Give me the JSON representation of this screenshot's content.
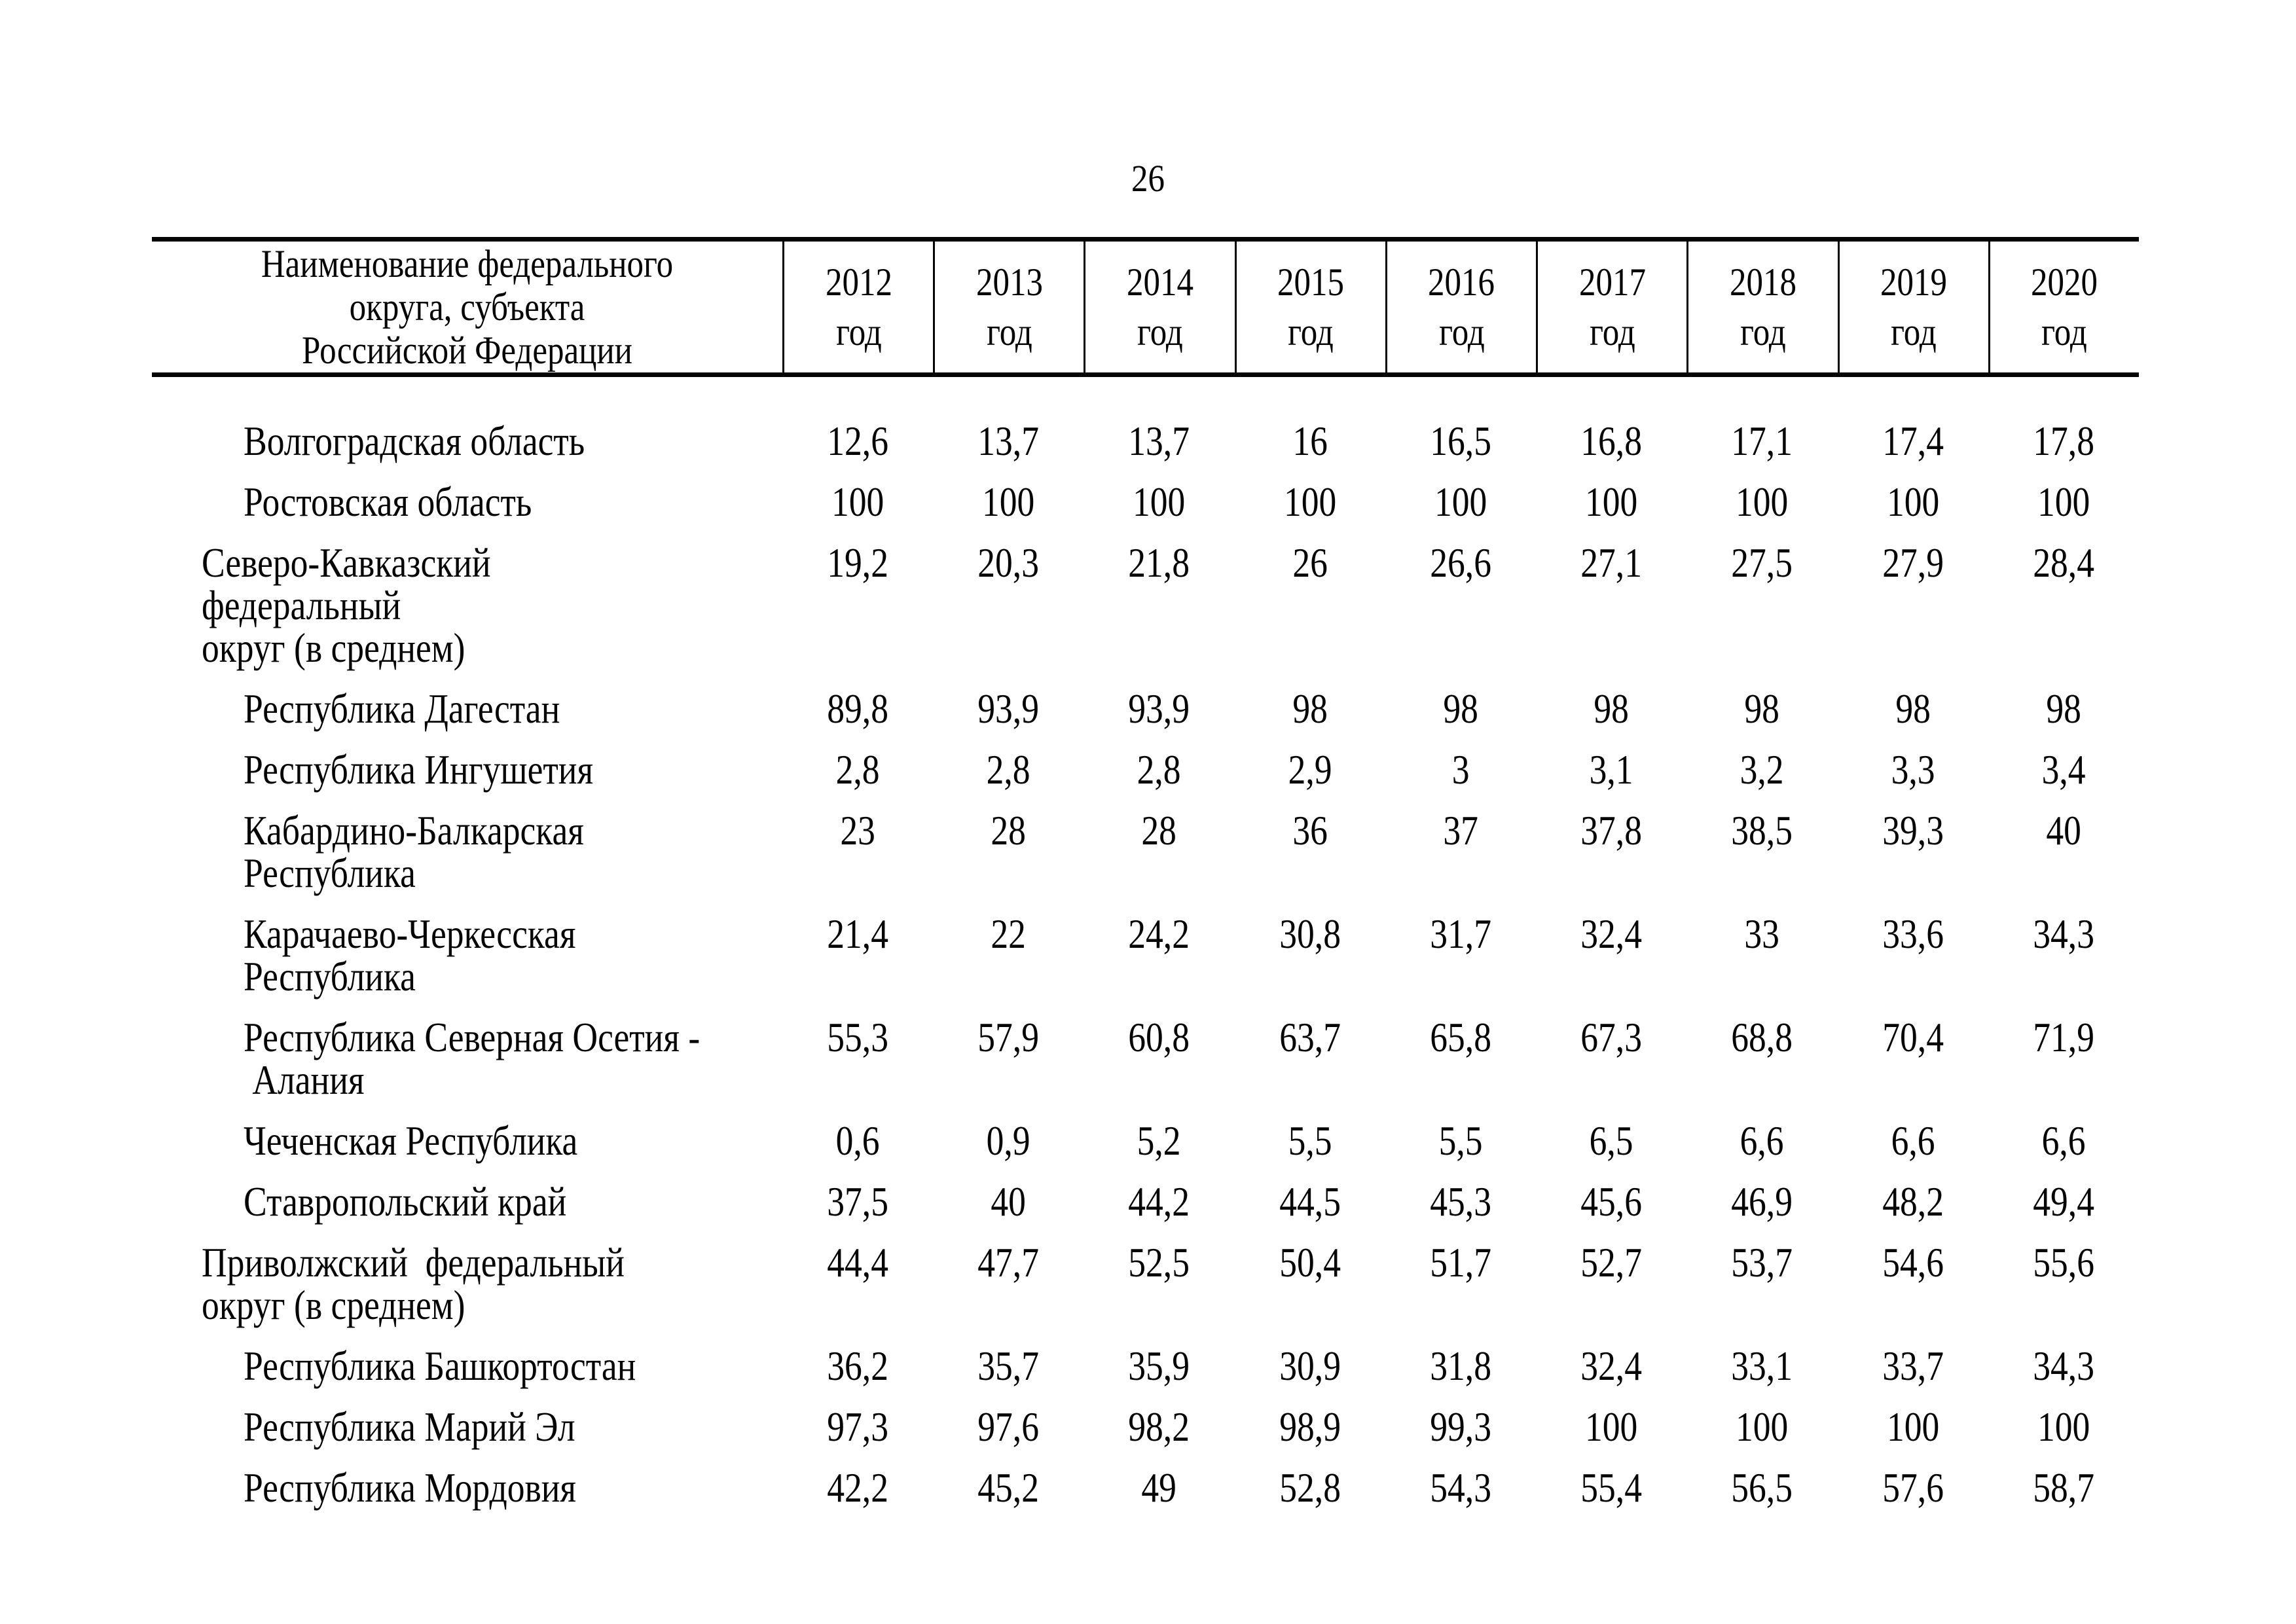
{
  "page": {
    "number": "26"
  },
  "table": {
    "header": {
      "name_column": "Наименование федерального\nокруга, субъекта\nРоссийской Федерации",
      "year_columns": [
        {
          "year": "2012",
          "unit": "год"
        },
        {
          "year": "2013",
          "unit": "год"
        },
        {
          "year": "2014",
          "unit": "год"
        },
        {
          "year": "2015",
          "unit": "год"
        },
        {
          "year": "2016",
          "unit": "год"
        },
        {
          "year": "2017",
          "unit": "год"
        },
        {
          "year": "2018",
          "unit": "год"
        },
        {
          "year": "2019",
          "unit": "год"
        },
        {
          "year": "2020",
          "unit": "год"
        }
      ]
    },
    "rows": [
      {
        "level": "region",
        "lines": [
          "Волгоградская область"
        ],
        "values": [
          "12,6",
          "13,7",
          "13,7",
          "16",
          "16,5",
          "16,8",
          "17,1",
          "17,4",
          "17,8"
        ]
      },
      {
        "level": "region",
        "lines": [
          "Ростовская область"
        ],
        "values": [
          "100",
          "100",
          "100",
          "100",
          "100",
          "100",
          "100",
          "100",
          "100"
        ]
      },
      {
        "level": "district",
        "lines": [
          "Северо-Кавказский  федеральный",
          "округ (в среднем)"
        ],
        "values": [
          "19,2",
          "20,3",
          "21,8",
          "26",
          "26,6",
          "27,1",
          "27,5",
          "27,9",
          "28,4"
        ]
      },
      {
        "level": "region",
        "lines": [
          "Республика Дагестан"
        ],
        "values": [
          "89,8",
          "93,9",
          "93,9",
          "98",
          "98",
          "98",
          "98",
          "98",
          "98"
        ]
      },
      {
        "level": "region",
        "lines": [
          "Республика Ингушетия"
        ],
        "values": [
          "2,8",
          "2,8",
          "2,8",
          "2,9",
          "3",
          "3,1",
          "3,2",
          "3,3",
          "3,4"
        ]
      },
      {
        "level": "region",
        "lines": [
          "Кабардино-Балкарская",
          "Республика"
        ],
        "values": [
          "23",
          "28",
          "28",
          "36",
          "37",
          "37,8",
          "38,5",
          "39,3",
          "40"
        ]
      },
      {
        "level": "region",
        "lines": [
          "Карачаево-Черкесская",
          "Республика"
        ],
        "values": [
          "21,4",
          "22",
          "24,2",
          "30,8",
          "31,7",
          "32,4",
          "33",
          "33,6",
          "34,3"
        ]
      },
      {
        "level": "region",
        "lines": [
          "Республика Северная Осетия -",
          " Алания"
        ],
        "values": [
          "55,3",
          "57,9",
          "60,8",
          "63,7",
          "65,8",
          "67,3",
          "68,8",
          "70,4",
          "71,9"
        ]
      },
      {
        "level": "region",
        "lines": [
          "Чеченская Республика"
        ],
        "values": [
          "0,6",
          "0,9",
          "5,2",
          "5,5",
          "5,5",
          "6,5",
          "6,6",
          "6,6",
          "6,6"
        ]
      },
      {
        "level": "region",
        "lines": [
          "Ставропольский край"
        ],
        "values": [
          "37,5",
          "40",
          "44,2",
          "44,5",
          "45,3",
          "45,6",
          "46,9",
          "48,2",
          "49,4"
        ]
      },
      {
        "level": "district",
        "lines": [
          "Приволжский  федеральный",
          "округ (в среднем)"
        ],
        "values": [
          "44,4",
          "47,7",
          "52,5",
          "50,4",
          "51,7",
          "52,7",
          "53,7",
          "54,6",
          "55,6"
        ]
      },
      {
        "level": "region",
        "lines": [
          "Республика Башкортостан"
        ],
        "values": [
          "36,2",
          "35,7",
          "35,9",
          "30,9",
          "31,8",
          "32,4",
          "33,1",
          "33,7",
          "34,3"
        ]
      },
      {
        "level": "region",
        "lines": [
          "Республика Марий Эл"
        ],
        "values": [
          "97,3",
          "97,6",
          "98,2",
          "98,9",
          "99,3",
          "100",
          "100",
          "100",
          "100"
        ]
      },
      {
        "level": "region",
        "lines": [
          "Республика Мордовия"
        ],
        "values": [
          "42,2",
          "45,2",
          "49",
          "52,8",
          "54,3",
          "55,4",
          "56,5",
          "57,6",
          "58,7"
        ]
      }
    ]
  }
}
